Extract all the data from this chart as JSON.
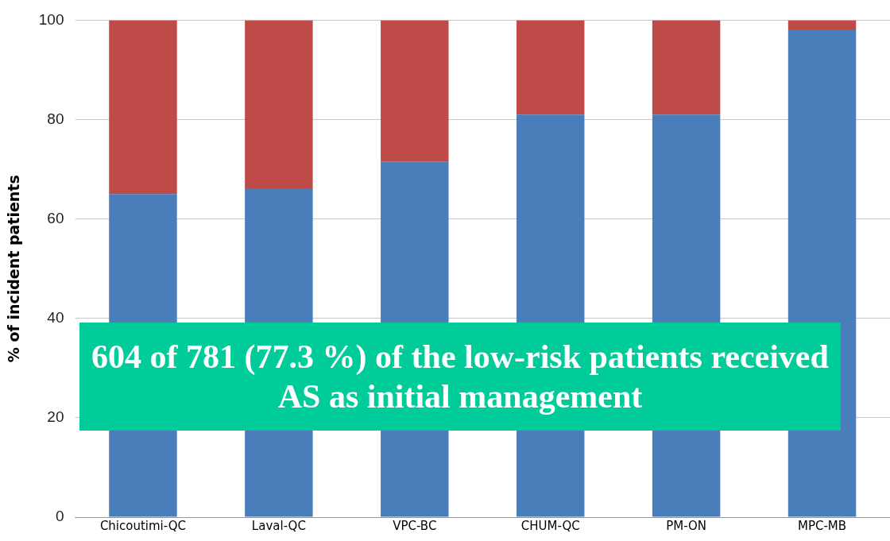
{
  "chart_data": {
    "type": "bar",
    "stacked": true,
    "ylabel": "% of incident patients",
    "categories": [
      "Chicoutimi-QC",
      "Laval-QC",
      "VPC-BC",
      "CHUM-QC",
      "PM-ON",
      "MPC-MB"
    ],
    "series": [
      {
        "color": "#4a7ebb",
        "values": [
          65,
          66,
          71.5,
          81,
          81,
          98
        ]
      },
      {
        "color": "#be4b48",
        "values": [
          35,
          34,
          28.5,
          19,
          19,
          2
        ]
      }
    ],
    "ylim": [
      0,
      100
    ],
    "yticks": [
      0,
      20,
      40,
      60,
      80,
      100
    ],
    "grid": "y",
    "annotations": [
      "604 of 781 (77.3 %) of the low-risk patients received AS as initial management"
    ]
  }
}
